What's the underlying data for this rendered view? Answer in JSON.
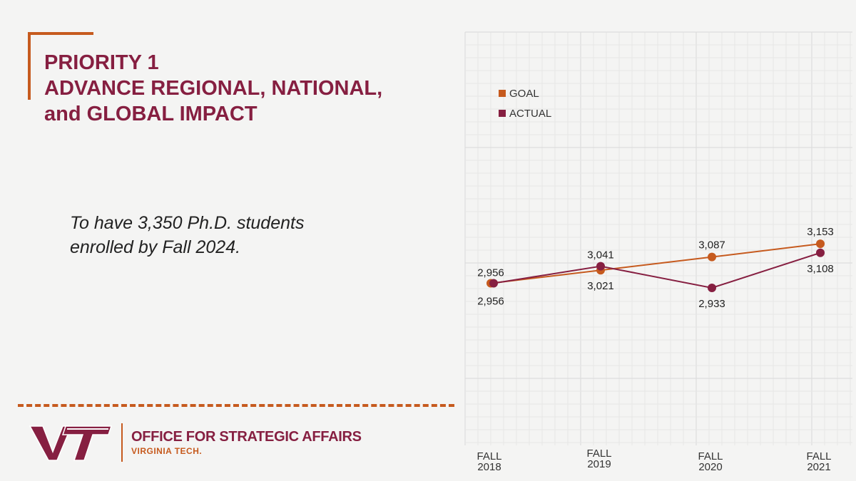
{
  "slide": {
    "title_lines": [
      "PRIORITY 1",
      "ADVANCE REGIONAL, NATIONAL,",
      "and GLOBAL IMPACT"
    ],
    "goal_text_lines": [
      "To have 3,350 Ph.D. students",
      "enrolled by Fall 2024."
    ]
  },
  "footer": {
    "office_name": "OFFICE FOR STRATEGIC AFFAIRS",
    "university": "VIRGINIA TECH."
  },
  "colors": {
    "goal": "#c65a1e",
    "actual": "#861f41",
    "title": "#861f41",
    "accent": "#c65a1e"
  },
  "chart_data": {
    "type": "line",
    "title": "",
    "xlabel": "",
    "ylabel": "",
    "categories": [
      [
        "FALL",
        "2018"
      ],
      [
        "FALL",
        "2019"
      ],
      [
        "FALL",
        "2020"
      ],
      [
        "FALL",
        "2021"
      ]
    ],
    "series": [
      {
        "name": "GOAL",
        "values": [
          2956,
          3021,
          3087,
          3153
        ],
        "labels": [
          "2,956",
          "3,021",
          "3,087",
          "3,153"
        ]
      },
      {
        "name": "ACTUAL",
        "values": [
          2956,
          3041,
          2933,
          3108
        ],
        "labels": [
          "2,956",
          "3,041",
          "2,933",
          "3,108"
        ]
      }
    ],
    "legend_position": "top-left",
    "grid": true,
    "ylim": [
      2300,
      3900
    ]
  }
}
